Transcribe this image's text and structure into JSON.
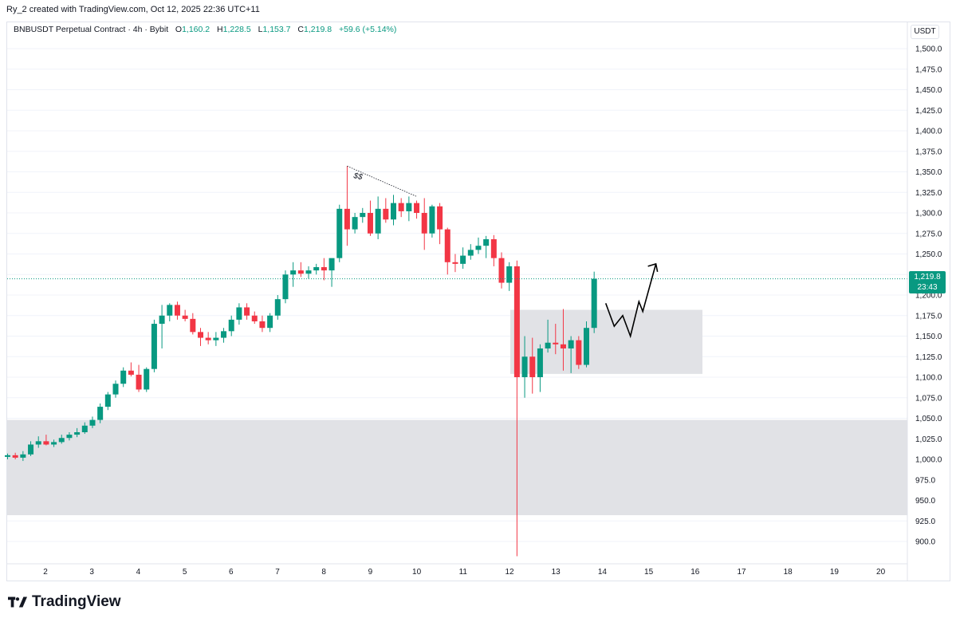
{
  "attribution": "Ry_2 created with TradingView.com, Oct 12, 2025 22:36 UTC+11",
  "legend": {
    "symbol": "BNBUSDT Perpetual Contract · 4h · Bybit",
    "o_label": "O",
    "o_value": "1,160.2",
    "h_label": "H",
    "h_value": "1,228.5",
    "l_label": "L",
    "l_value": "1,153.7",
    "c_label": "C",
    "c_value": "1,219.8",
    "change": "+59.6 (+5.14%)"
  },
  "currency": "USDT",
  "price_tag": {
    "price": "1,219.8",
    "countdown": "23:43"
  },
  "footer": {
    "brand": "TradingView"
  },
  "chart_data": {
    "type": "candlestick",
    "timeframe": "4h",
    "y_axis": {
      "ylim": [
        882,
        1520
      ],
      "ticks": [
        "900.0",
        "925.0",
        "950.0",
        "975.0",
        "1,000.0",
        "1,025.0",
        "1,050.0",
        "1,075.0",
        "1,100.0",
        "1,125.0",
        "1,150.0",
        "1,175.0",
        "1,200.0",
        "1,225.0",
        "1,250.0",
        "1,275.0",
        "1,300.0",
        "1,325.0",
        "1,350.0",
        "1,375.0",
        "1,400.0",
        "1,425.0",
        "1,450.0",
        "1,475.0",
        "1,500.0"
      ],
      "tick_values": [
        900,
        925,
        950,
        975,
        1000,
        1025,
        1050,
        1075,
        1100,
        1125,
        1150,
        1175,
        1200,
        1225,
        1250,
        1275,
        1300,
        1325,
        1350,
        1375,
        1400,
        1425,
        1450,
        1475,
        1500
      ]
    },
    "x_axis": {
      "ticks": [
        "2",
        "3",
        "4",
        "5",
        "6",
        "7",
        "8",
        "9",
        "10",
        "11",
        "12",
        "13",
        "14",
        "15",
        "16",
        "17",
        "18",
        "19",
        "20"
      ]
    },
    "candles": [
      [
        1003,
        1007,
        1000,
        1005
      ],
      [
        1005,
        1008,
        1000,
        1002
      ],
      [
        1002,
        1010,
        998,
        1006
      ],
      [
        1006,
        1022,
        1004,
        1018
      ],
      [
        1018,
        1028,
        1014,
        1022
      ],
      [
        1022,
        1030,
        1017,
        1018
      ],
      [
        1018,
        1024,
        1015,
        1021
      ],
      [
        1021,
        1030,
        1019,
        1026
      ],
      [
        1026,
        1033,
        1023,
        1030
      ],
      [
        1030,
        1038,
        1027,
        1033
      ],
      [
        1033,
        1045,
        1031,
        1041
      ],
      [
        1041,
        1052,
        1038,
        1048
      ],
      [
        1048,
        1068,
        1044,
        1064
      ],
      [
        1064,
        1082,
        1060,
        1079
      ],
      [
        1079,
        1096,
        1075,
        1092
      ],
      [
        1092,
        1112,
        1088,
        1108
      ],
      [
        1108,
        1118,
        1101,
        1103
      ],
      [
        1103,
        1115,
        1082,
        1085
      ],
      [
        1085,
        1112,
        1082,
        1110
      ],
      [
        1110,
        1170,
        1106,
        1165
      ],
      [
        1165,
        1188,
        1135,
        1175
      ],
      [
        1175,
        1190,
        1168,
        1188
      ],
      [
        1188,
        1192,
        1170,
        1175
      ],
      [
        1175,
        1182,
        1168,
        1171
      ],
      [
        1171,
        1178,
        1152,
        1155
      ],
      [
        1155,
        1160,
        1138,
        1148
      ],
      [
        1148,
        1155,
        1140,
        1145
      ],
      [
        1145,
        1155,
        1138,
        1148
      ],
      [
        1148,
        1160,
        1142,
        1156
      ],
      [
        1156,
        1175,
        1150,
        1170
      ],
      [
        1170,
        1190,
        1164,
        1185
      ],
      [
        1185,
        1190,
        1170,
        1175
      ],
      [
        1175,
        1180,
        1165,
        1168
      ],
      [
        1168,
        1175,
        1155,
        1160
      ],
      [
        1160,
        1178,
        1155,
        1175
      ],
      [
        1175,
        1200,
        1170,
        1195
      ],
      [
        1195,
        1230,
        1190,
        1225
      ],
      [
        1225,
        1240,
        1210,
        1230
      ],
      [
        1230,
        1240,
        1222,
        1226
      ],
      [
        1226,
        1235,
        1220,
        1230
      ],
      [
        1230,
        1238,
        1225,
        1234
      ],
      [
        1234,
        1245,
        1218,
        1230
      ],
      [
        1230,
        1240,
        1210,
        1245
      ],
      [
        1245,
        1310,
        1240,
        1305
      ],
      [
        1305,
        1357,
        1260,
        1280
      ],
      [
        1280,
        1300,
        1275,
        1295
      ],
      [
        1295,
        1306,
        1288,
        1300
      ],
      [
        1300,
        1315,
        1272,
        1275
      ],
      [
        1275,
        1320,
        1268,
        1305
      ],
      [
        1305,
        1318,
        1288,
        1292
      ],
      [
        1292,
        1322,
        1285,
        1312
      ],
      [
        1312,
        1318,
        1295,
        1302
      ],
      [
        1302,
        1320,
        1290,
        1312
      ],
      [
        1312,
        1315,
        1293,
        1300
      ],
      [
        1300,
        1318,
        1255,
        1275
      ],
      [
        1275,
        1310,
        1270,
        1308
      ],
      [
        1308,
        1312,
        1262,
        1280
      ],
      [
        1280,
        1282,
        1225,
        1240
      ],
      [
        1240,
        1250,
        1228,
        1238
      ],
      [
        1238,
        1258,
        1232,
        1248
      ],
      [
        1248,
        1262,
        1243,
        1255
      ],
      [
        1255,
        1270,
        1250,
        1260
      ],
      [
        1260,
        1272,
        1245,
        1268
      ],
      [
        1268,
        1273,
        1235,
        1245
      ],
      [
        1245,
        1252,
        1208,
        1215
      ],
      [
        1215,
        1240,
        1205,
        1235
      ],
      [
        1235,
        1242,
        882,
        1100
      ],
      [
        1100,
        1150,
        1075,
        1125
      ],
      [
        1125,
        1148,
        1080,
        1100
      ],
      [
        1100,
        1140,
        1082,
        1135
      ],
      [
        1135,
        1170,
        1130,
        1142
      ],
      [
        1142,
        1165,
        1128,
        1140
      ],
      [
        1140,
        1183,
        1108,
        1135
      ],
      [
        1135,
        1150,
        1105,
        1145
      ],
      [
        1145,
        1150,
        1110,
        1115
      ],
      [
        1115,
        1168,
        1112,
        1160
      ],
      [
        1160,
        1228.5,
        1153.7,
        1219.8
      ]
    ],
    "current_price": 1219.8,
    "zones": [
      {
        "name": "demand-zone-lower",
        "top": 1048,
        "bottom": 932
      },
      {
        "name": "demand-zone-upper",
        "top": 1182,
        "bottom": 1104
      }
    ],
    "annotations": {
      "liquidity_label": "$$",
      "trendline": {
        "from": [
          44,
          1357
        ],
        "to": [
          53,
          1320
        ]
      },
      "projection_path": [
        [
          77.5,
          1190
        ],
        [
          78.6,
          1162
        ],
        [
          79.7,
          1175
        ],
        [
          80.7,
          1150
        ],
        [
          81.8,
          1192
        ],
        [
          82.3,
          1180
        ],
        [
          84,
          1238
        ]
      ]
    },
    "colors": {
      "up": "#089981",
      "down": "#f23645",
      "zone": "#e1e2e6",
      "price_line": "#089981",
      "grid": "#f0f3fa"
    }
  }
}
